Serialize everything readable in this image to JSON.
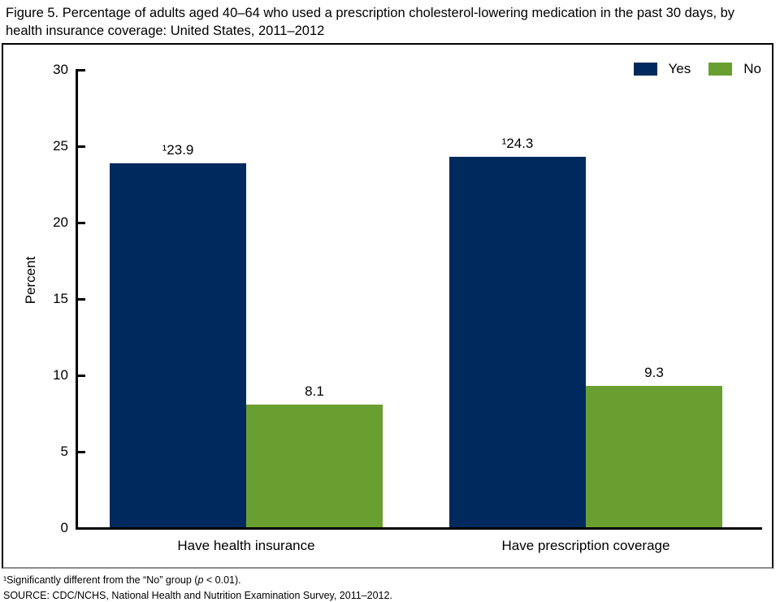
{
  "title": "Figure 5. Percentage of adults aged 40–64 who used a prescription cholesterol-lowering medication in the past 30 days, by health insurance coverage: United States, 2011–2012",
  "chart_data": {
    "type": "bar",
    "categories": [
      "Have health insurance",
      "Have prescription coverage"
    ],
    "series": [
      {
        "name": "Yes",
        "color": "#002a5e",
        "values": [
          23.9,
          24.3
        ],
        "value_labels": [
          "¹23.9",
          "¹24.3"
        ]
      },
      {
        "name": "No",
        "color": "#699f31",
        "values": [
          8.1,
          9.3
        ],
        "value_labels": [
          "8.1",
          "9.3"
        ]
      }
    ],
    "ylabel": "Percent",
    "ylim": [
      0,
      30
    ],
    "yticks": [
      0,
      5,
      10,
      15,
      20,
      25,
      30
    ],
    "grid": false,
    "legend_position": "top-right"
  },
  "footnotes": {
    "note1_pre": "¹Significantly different from the “No” group (",
    "note1_italic": "p",
    "note1_post": " < 0.01).",
    "source": "SOURCE: CDC/NCHS, National Health and Nutrition Examination Survey, 2011–2012."
  }
}
